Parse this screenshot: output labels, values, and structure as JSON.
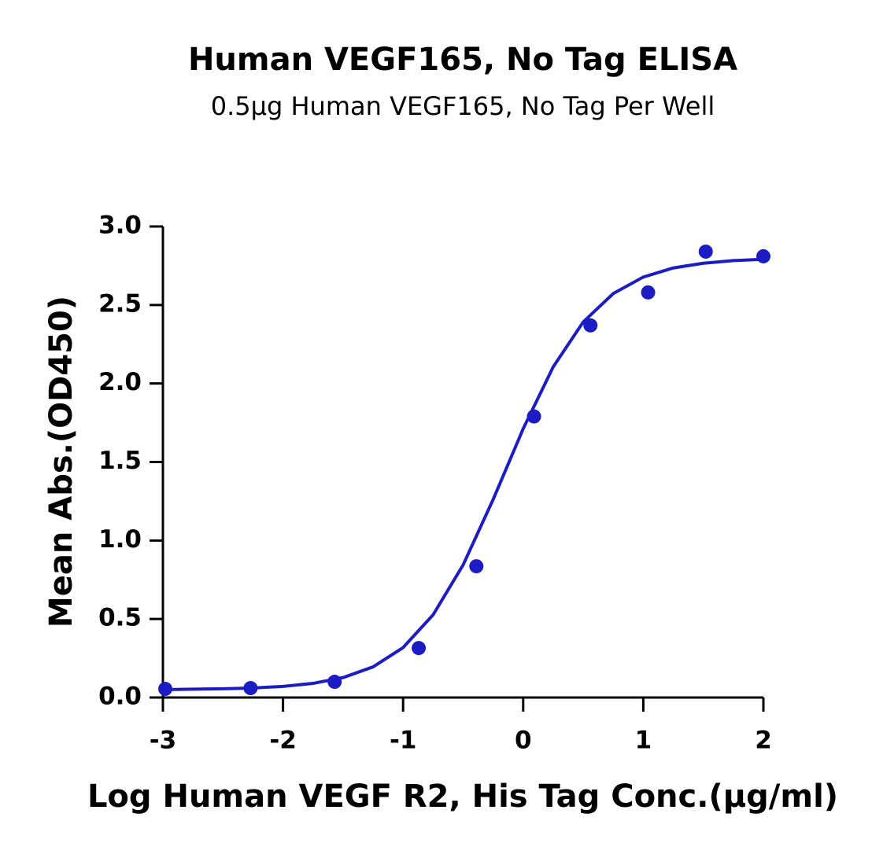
{
  "chart_data": {
    "type": "scatter",
    "title": "Human VEGF165, No Tag ELISA",
    "subtitle": "0.5μg Human VEGF165, No Tag Per Well",
    "x_label": "Log Human VEGF R2, His Tag Conc.(μg/ml)",
    "y_label": "Mean Abs.(OD450)",
    "xlim": [
      -3,
      2
    ],
    "ylim": [
      0,
      3
    ],
    "xticks": [
      -3,
      -2,
      -1,
      0,
      1,
      2
    ],
    "yticks": [
      {
        "value": 0,
        "label": "0.0"
      },
      0.5,
      {
        "value": 1,
        "label": "1.0"
      },
      1.5,
      {
        "value": 2,
        "label": "2.0"
      },
      2.5,
      {
        "value": 3,
        "label": "3.0"
      }
    ],
    "grid": false,
    "series": [
      {
        "type": "scatter",
        "color": "#1c1cc4",
        "x": [
          -2.98,
          -2.27,
          -1.57,
          -0.87,
          -0.39,
          0.09,
          0.56,
          1.04,
          1.52,
          2.0
        ],
        "values": [
          0.055,
          0.06,
          0.1,
          0.315,
          0.836,
          1.79,
          2.37,
          2.58,
          2.84,
          2.81
        ]
      },
      {
        "type": "line",
        "color": "#1c1cc4",
        "x": [
          -3,
          -2.75,
          -2.5,
          -2.25,
          -2,
          -1.75,
          -1.5,
          -1.25,
          -1,
          -0.75,
          -0.5,
          -0.25,
          0,
          0.25,
          0.5,
          0.75,
          1,
          1.25,
          1.5,
          1.75,
          2
        ],
        "values": [
          0.05,
          0.053,
          0.056,
          0.061,
          0.071,
          0.09,
          0.127,
          0.195,
          0.318,
          0.527,
          0.845,
          1.262,
          1.712,
          2.106,
          2.392,
          2.573,
          2.678,
          2.736,
          2.766,
          2.783,
          2.791
        ]
      }
    ]
  }
}
